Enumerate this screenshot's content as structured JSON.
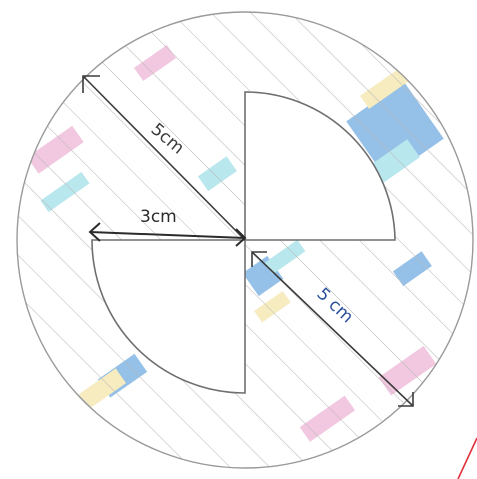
{
  "labels": {
    "left_radius": "5cm",
    "quadrant_radius": "3cm",
    "right_radius": "5 cm"
  },
  "colors": {
    "paper": "#ffffff",
    "pencil": "#6f6f6f",
    "hatch": "#b9b9b9",
    "ink_dark": "#3b3b3b",
    "ink_blue": "#2b4f9e",
    "blue_shade": "#3f8fd6",
    "cyan_shade": "#7fd3e0",
    "pink_shade": "#e79bc7",
    "yellow_shade": "#f0dd8c",
    "red_mark": "#e0323c"
  }
}
